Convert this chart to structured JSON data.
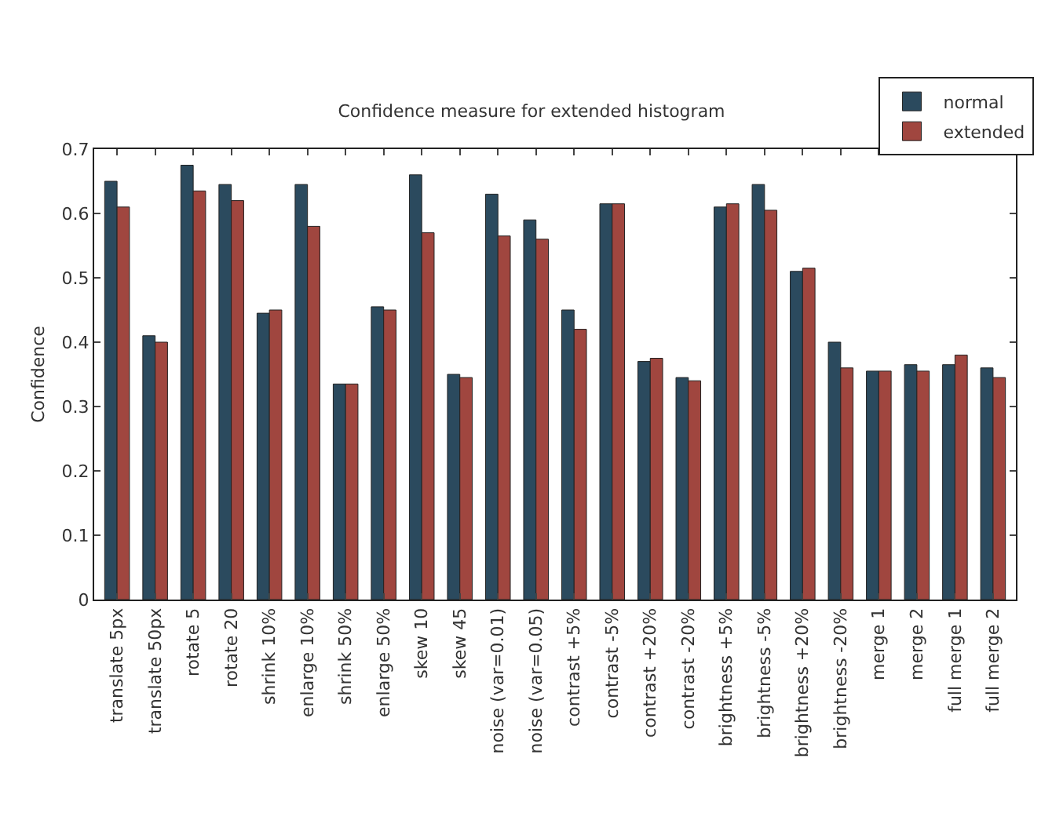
{
  "chart_data": {
    "type": "bar",
    "title": "Confidence measure for extended histogram",
    "ylabel": "Confidence",
    "categories": [
      "translate 5px",
      "translate 50px",
      "rotate 5",
      "rotate 20",
      "shrink 10%",
      "enlarge 10%",
      "shrink 50%",
      "enlarge 50%",
      "skew 10",
      "skew 45",
      "noise (var=0.01)",
      "noise (var=0.05)",
      "contrast +5%",
      "contrast -5%",
      "contrast +20%",
      "contrast -20%",
      "brightness +5%",
      "brightness -5%",
      "brightness +20%",
      "brightness -20%",
      "merge 1",
      "merge 2",
      "full merge 1",
      "full merge 2"
    ],
    "series": [
      {
        "name": "normal",
        "color": "#2b4a5e",
        "values": [
          0.65,
          0.41,
          0.675,
          0.645,
          0.445,
          0.645,
          0.335,
          0.455,
          0.66,
          0.35,
          0.63,
          0.59,
          0.45,
          0.615,
          0.37,
          0.345,
          0.61,
          0.645,
          0.51,
          0.4,
          0.355,
          0.365,
          0.365,
          0.36
        ]
      },
      {
        "name": "extended",
        "color": "#a0463f",
        "values": [
          0.61,
          0.4,
          0.635,
          0.62,
          0.45,
          0.58,
          0.335,
          0.45,
          0.57,
          0.345,
          0.565,
          0.56,
          0.42,
          0.615,
          0.375,
          0.34,
          0.615,
          0.605,
          0.515,
          0.36,
          0.355,
          0.355,
          0.38,
          0.345
        ]
      }
    ],
    "ylim": [
      0,
      0.7
    ],
    "yticks": [
      0,
      0.1,
      0.2,
      0.3,
      0.4,
      0.5,
      0.6,
      0.7
    ],
    "grid": false,
    "legend": "top right"
  }
}
